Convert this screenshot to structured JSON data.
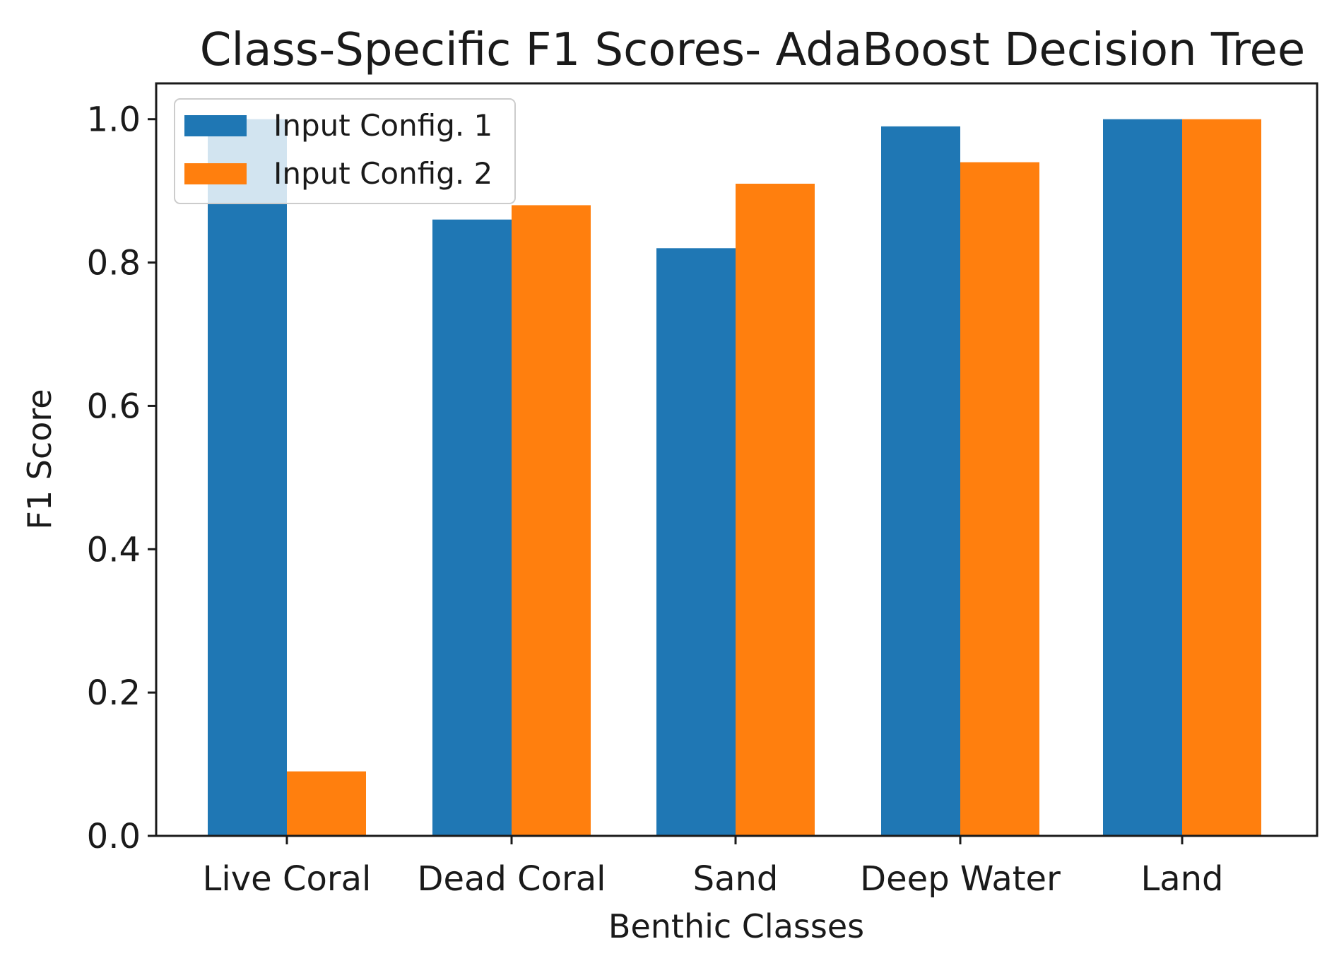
{
  "chart_data": {
    "type": "bar",
    "title": "Class-Specific F1 Scores- AdaBoost Decision Tree",
    "xlabel": "Benthic Classes",
    "ylabel": "F1 Score",
    "categories": [
      "Live Coral",
      "Dead Coral",
      "Sand",
      "Deep Water",
      "Land"
    ],
    "series": [
      {
        "name": "Input Config. 1",
        "color": "#1f77b4",
        "values": [
          1.0,
          0.86,
          0.82,
          0.99,
          1.0
        ]
      },
      {
        "name": "Input Config. 2",
        "color": "#ff7f0e",
        "values": [
          0.09,
          0.88,
          0.91,
          0.94,
          1.0
        ]
      }
    ],
    "ylim": [
      0,
      1.05
    ],
    "yticks": [
      "0.0",
      "0.2",
      "0.4",
      "0.6",
      "0.8",
      "1.0"
    ],
    "grid": false,
    "legend_position": "top-left"
  }
}
